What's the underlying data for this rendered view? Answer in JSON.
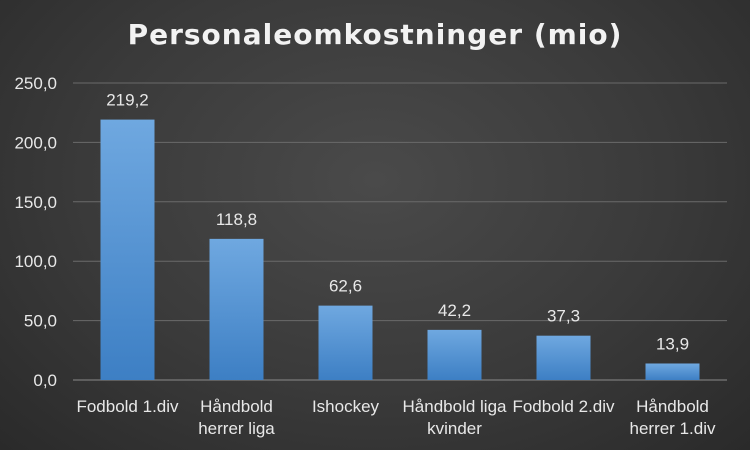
{
  "chart_data": {
    "type": "bar",
    "title": "Personaleomkostninger (mio)",
    "xlabel": "",
    "ylabel": "",
    "categories": [
      [
        "Fodbold 1.div"
      ],
      [
        "Håndbold",
        "herrer liga"
      ],
      [
        "Ishockey"
      ],
      [
        "Håndbold liga",
        "kvinder"
      ],
      [
        "Fodbold 2.div"
      ],
      [
        "Håndbold",
        "herrer 1.div"
      ]
    ],
    "values": [
      219.2,
      118.8,
      62.6,
      42.2,
      37.3,
      13.9
    ],
    "value_labels": [
      "219,2",
      "118,8",
      "62,6",
      "42,2",
      "37,3",
      "13,9"
    ],
    "yticks": [
      0,
      50,
      100,
      150,
      200,
      250
    ],
    "ytick_labels": [
      "0,0",
      "50,0",
      "100,0",
      "150,0",
      "200,0",
      "250,0"
    ],
    "ylim": [
      0,
      250
    ],
    "grid": true,
    "legend": "none",
    "colors": {
      "bar_top": "#6fa8e0",
      "bar_bottom": "#3d7fc4",
      "text": "#e8e8e8",
      "grid": "#6a6a6a",
      "axis": "#8a8a8a"
    }
  }
}
